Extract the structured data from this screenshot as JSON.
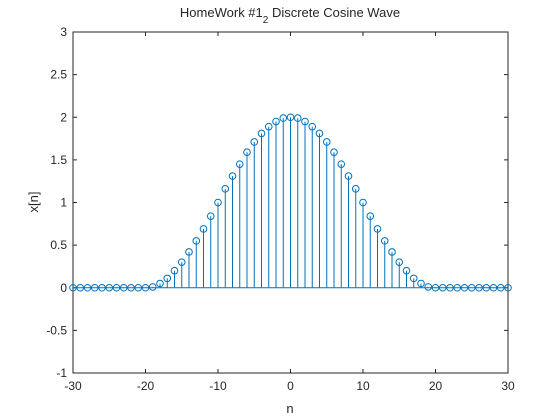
{
  "chart_data": {
    "type": "stem",
    "title_main": "HomeWork #1",
    "title_sub": "2",
    "title_rest": " Discrete Cosine Wave",
    "xlabel": "n",
    "ylabel": "x[n]",
    "xlim": [
      -30,
      30
    ],
    "ylim": [
      -1,
      3
    ],
    "xticks": [
      -30,
      -20,
      -10,
      0,
      10,
      20,
      30
    ],
    "yticks": [
      -1,
      -0.5,
      0,
      0.5,
      1,
      1.5,
      2,
      2.5,
      3
    ],
    "grid": false,
    "series_color": "#0072bd",
    "x": [
      -30,
      -29,
      -28,
      -27,
      -26,
      -25,
      -24,
      -23,
      -22,
      -21,
      -20,
      -19,
      -18,
      -17,
      -16,
      -15,
      -14,
      -13,
      -12,
      -11,
      -10,
      -9,
      -8,
      -7,
      -6,
      -5,
      -4,
      -3,
      -2,
      -1,
      0,
      1,
      2,
      3,
      4,
      5,
      6,
      7,
      8,
      9,
      10,
      11,
      12,
      13,
      14,
      15,
      16,
      17,
      18,
      19,
      20,
      21,
      22,
      23,
      24,
      25,
      26,
      27,
      28,
      29,
      30
    ],
    "y": [
      0,
      0,
      0,
      0,
      0,
      0,
      0,
      0,
      0,
      0,
      0,
      0.01,
      0.05,
      0.11,
      0.2,
      0.3,
      0.42,
      0.55,
      0.69,
      0.84,
      1.0,
      1.16,
      1.31,
      1.45,
      1.59,
      1.71,
      1.81,
      1.89,
      1.95,
      1.99,
      2.0,
      1.99,
      1.95,
      1.89,
      1.81,
      1.71,
      1.59,
      1.45,
      1.31,
      1.16,
      1.0,
      0.84,
      0.69,
      0.55,
      0.42,
      0.3,
      0.2,
      0.11,
      0.05,
      0.01,
      0,
      0,
      0,
      0,
      0,
      0,
      0,
      0,
      0,
      0,
      0
    ]
  }
}
